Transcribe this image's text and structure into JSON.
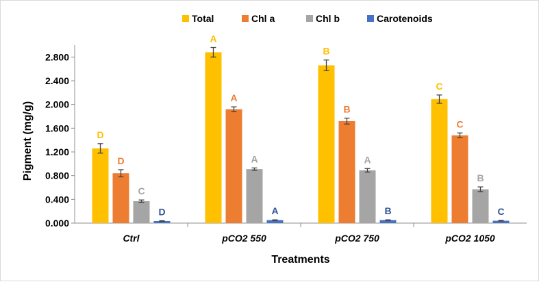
{
  "chart_data": {
    "type": "bar",
    "title": "",
    "xlabel": "Treatments",
    "ylabel": "Pigment (mg/g)",
    "ylim": [
      0,
      3.0
    ],
    "yticks": [
      "0.000",
      "0.400",
      "0.800",
      "1.200",
      "1.600",
      "2.000",
      "2.400",
      "2.800"
    ],
    "ytick_values": [
      0,
      0.4,
      0.8,
      1.2,
      1.6,
      2.0,
      2.4,
      2.8
    ],
    "categories": [
      "Ctrl",
      "pCO2 550",
      "pCO2 750",
      "pCO2 1050"
    ],
    "legend_position": "top",
    "series": [
      {
        "name": "Total",
        "color": "#FFC000",
        "values": [
          1.26,
          2.88,
          2.66,
          2.09
        ],
        "errors": [
          0.08,
          0.08,
          0.09,
          0.07
        ],
        "letters": [
          "D",
          "A",
          "B",
          "C"
        ]
      },
      {
        "name": "Chl a",
        "color": "#ED7D31",
        "values": [
          0.84,
          1.92,
          1.72,
          1.48
        ],
        "errors": [
          0.06,
          0.04,
          0.05,
          0.04
        ],
        "letters": [
          "D",
          "A",
          "B",
          "C"
        ]
      },
      {
        "name": "Chl b",
        "color": "#A5A5A5",
        "values": [
          0.37,
          0.91,
          0.89,
          0.57
        ],
        "errors": [
          0.02,
          0.02,
          0.03,
          0.04
        ],
        "letters": [
          "C",
          "A",
          "A",
          "B"
        ]
      },
      {
        "name": "Carotenoids",
        "color": "#4472C4",
        "values": [
          0.035,
          0.05,
          0.05,
          0.04
        ],
        "errors": [
          0.005,
          0.005,
          0.005,
          0.005
        ],
        "letters": [
          "D",
          "A",
          "B",
          "C"
        ],
        "letter_color": "#2F5597"
      }
    ]
  }
}
